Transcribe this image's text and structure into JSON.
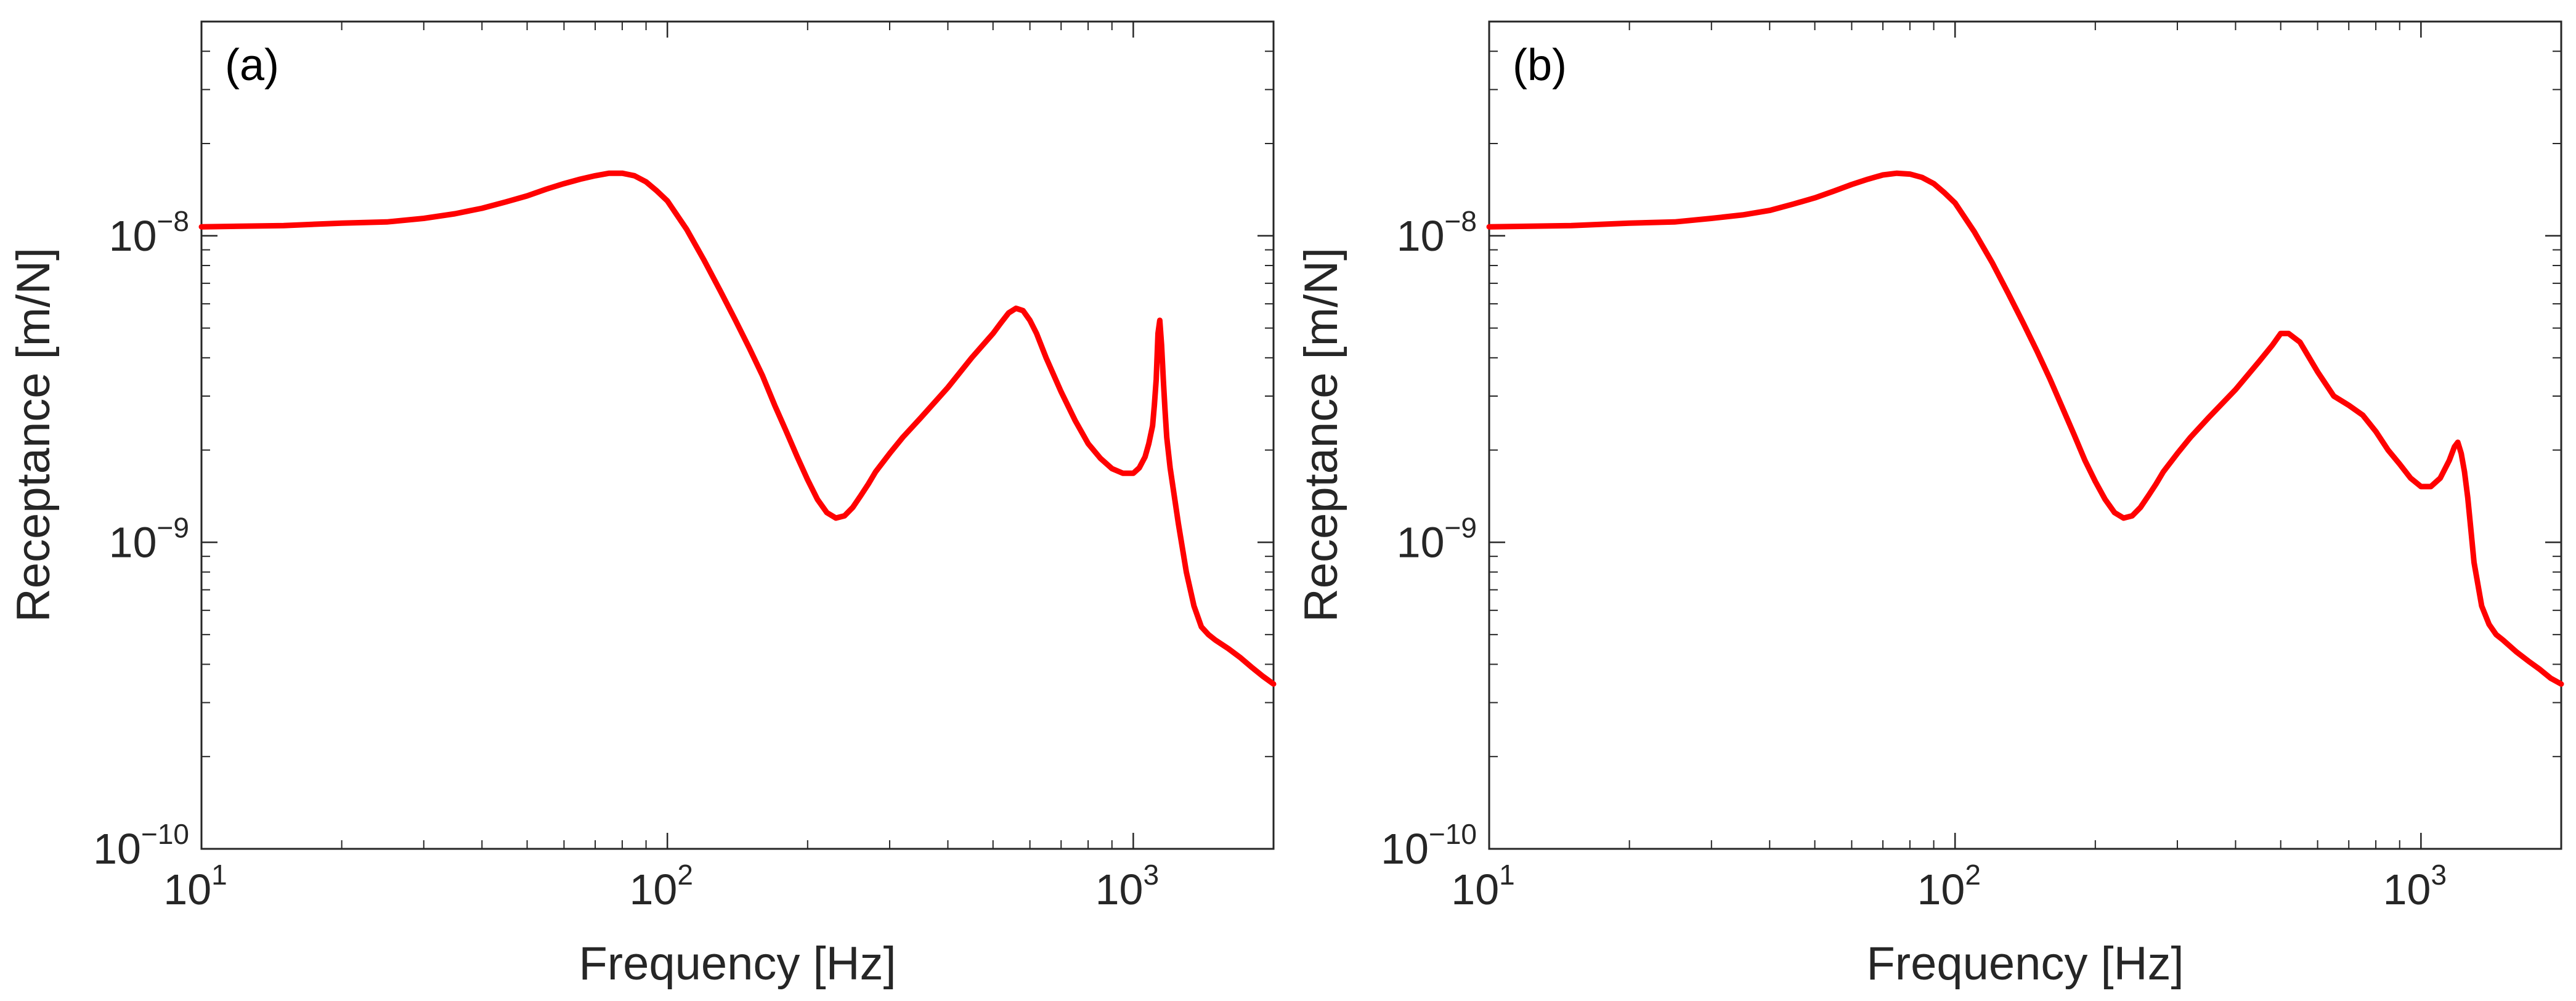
{
  "figure": {
    "panel_count": 2
  },
  "colors": {
    "axis": "#262626",
    "series": "#ff0000",
    "background": "#ffffff"
  },
  "chart_data": [
    {
      "type": "line",
      "panel_label": "(a)",
      "title": "",
      "xlabel": "Frequency [Hz]",
      "ylabel": "Receptance [m/N]",
      "xscale": "log",
      "yscale": "log",
      "xlim": [
        10,
        2000
      ],
      "ylim": [
        1e-10,
        5e-08
      ],
      "xticks": [
        {
          "base": "10",
          "exp": "1",
          "value": 10
        },
        {
          "base": "10",
          "exp": "2",
          "value": 100
        },
        {
          "base": "10",
          "exp": "3",
          "value": 1000
        }
      ],
      "yticks": [
        {
          "base": "10",
          "exp": "−10",
          "value": 1e-10
        },
        {
          "base": "10",
          "exp": "−9",
          "value": 1e-09
        },
        {
          "base": "10",
          "exp": "−8",
          "value": 1e-08
        }
      ],
      "grid": false,
      "legend": "none",
      "series": [
        {
          "name": "receptance",
          "color": "#ff0000",
          "x": [
            10,
            15,
            20,
            25,
            30,
            35,
            40,
            45,
            50,
            55,
            60,
            65,
            70,
            75,
            80,
            85,
            90,
            95,
            100,
            110,
            120,
            130,
            140,
            150,
            160,
            170,
            180,
            190,
            200,
            210,
            220,
            230,
            240,
            250,
            260,
            270,
            280,
            300,
            320,
            350,
            400,
            450,
            500,
            520,
            540,
            560,
            580,
            600,
            620,
            650,
            700,
            750,
            800,
            850,
            900,
            950,
            1000,
            1030,
            1060,
            1080,
            1100,
            1110,
            1120,
            1130,
            1140,
            1150,
            1160,
            1170,
            1180,
            1200,
            1250,
            1300,
            1350,
            1400,
            1450,
            1500,
            1600,
            1700,
            1800,
            1900,
            2000
          ],
          "y": [
            1.07e-08,
            1.08e-08,
            1.1e-08,
            1.11e-08,
            1.14e-08,
            1.18e-08,
            1.23e-08,
            1.29e-08,
            1.35e-08,
            1.42e-08,
            1.48e-08,
            1.53e-08,
            1.57e-08,
            1.6e-08,
            1.6e-08,
            1.57e-08,
            1.5e-08,
            1.4e-08,
            1.3e-08,
            1.05e-08,
            8.3e-09,
            6.6e-09,
            5.3e-09,
            4.3e-09,
            3.5e-09,
            2.8e-09,
            2.3e-09,
            1.9e-09,
            1.6e-09,
            1.38e-09,
            1.25e-09,
            1.2e-09,
            1.22e-09,
            1.3e-09,
            1.42e-09,
            1.55e-09,
            1.7e-09,
            1.95e-09,
            2.2e-09,
            2.55e-09,
            3.2e-09,
            4e-09,
            4.8e-09,
            5.2e-09,
            5.6e-09,
            5.8e-09,
            5.7e-09,
            5.3e-09,
            4.8e-09,
            4e-09,
            3.1e-09,
            2.5e-09,
            2.1e-09,
            1.88e-09,
            1.74e-09,
            1.68e-09,
            1.68e-09,
            1.75e-09,
            1.9e-09,
            2.1e-09,
            2.4e-09,
            2.8e-09,
            3.4e-09,
            4.8e-09,
            5.3e-09,
            4.4e-09,
            3.4e-09,
            2.7e-09,
            2.2e-09,
            1.75e-09,
            1.15e-09,
            8e-10,
            6.2e-10,
            5.3e-10,
            5e-10,
            4.8e-10,
            4.5e-10,
            4.2e-10,
            3.9e-10,
            3.65e-10,
            3.45e-10
          ]
        }
      ]
    },
    {
      "type": "line",
      "panel_label": "(b)",
      "title": "",
      "xlabel": "Frequency [Hz]",
      "ylabel": "Receptance [m/N]",
      "xscale": "log",
      "yscale": "log",
      "xlim": [
        10,
        2000
      ],
      "ylim": [
        1e-10,
        5e-08
      ],
      "xticks": [
        {
          "base": "10",
          "exp": "1",
          "value": 10
        },
        {
          "base": "10",
          "exp": "2",
          "value": 100
        },
        {
          "base": "10",
          "exp": "3",
          "value": 1000
        }
      ],
      "yticks": [
        {
          "base": "10",
          "exp": "−10",
          "value": 1e-10
        },
        {
          "base": "10",
          "exp": "−9",
          "value": 1e-09
        },
        {
          "base": "10",
          "exp": "−8",
          "value": 1e-08
        }
      ],
      "grid": false,
      "legend": "none",
      "series": [
        {
          "name": "receptance",
          "color": "#ff0000",
          "x": [
            10,
            15,
            20,
            25,
            30,
            35,
            40,
            45,
            50,
            55,
            60,
            65,
            70,
            75,
            80,
            85,
            90,
            95,
            100,
            110,
            120,
            130,
            140,
            150,
            160,
            170,
            180,
            190,
            200,
            210,
            220,
            230,
            240,
            250,
            260,
            270,
            280,
            300,
            320,
            350,
            400,
            450,
            480,
            500,
            520,
            550,
            600,
            650,
            700,
            750,
            800,
            850,
            900,
            950,
            1000,
            1050,
            1100,
            1150,
            1180,
            1200,
            1220,
            1240,
            1260,
            1280,
            1300,
            1350,
            1400,
            1450,
            1500,
            1600,
            1700,
            1800,
            1900,
            2000
          ],
          "y": [
            1.07e-08,
            1.08e-08,
            1.1e-08,
            1.11e-08,
            1.14e-08,
            1.17e-08,
            1.21e-08,
            1.27e-08,
            1.33e-08,
            1.4e-08,
            1.47e-08,
            1.53e-08,
            1.58e-08,
            1.6e-08,
            1.59e-08,
            1.55e-08,
            1.48e-08,
            1.38e-08,
            1.28e-08,
            1.03e-08,
            8.2e-09,
            6.5e-09,
            5.2e-09,
            4.2e-09,
            3.4e-09,
            2.75e-09,
            2.25e-09,
            1.85e-09,
            1.58e-09,
            1.38e-09,
            1.25e-09,
            1.2e-09,
            1.22e-09,
            1.3e-09,
            1.42e-09,
            1.55e-09,
            1.7e-09,
            1.95e-09,
            2.2e-09,
            2.55e-09,
            3.15e-09,
            3.9e-09,
            4.4e-09,
            4.8e-09,
            4.8e-09,
            4.5e-09,
            3.6e-09,
            3e-09,
            2.8e-09,
            2.6e-09,
            2.3e-09,
            2e-09,
            1.8e-09,
            1.62e-09,
            1.52e-09,
            1.52e-09,
            1.62e-09,
            1.85e-09,
            2.05e-09,
            2.12e-09,
            1.95e-09,
            1.7e-09,
            1.4e-09,
            1.1e-09,
            8.6e-10,
            6.2e-10,
            5.4e-10,
            5e-10,
            4.8e-10,
            4.4e-10,
            4.1e-10,
            3.85e-10,
            3.6e-10,
            3.45e-10
          ]
        }
      ]
    }
  ]
}
